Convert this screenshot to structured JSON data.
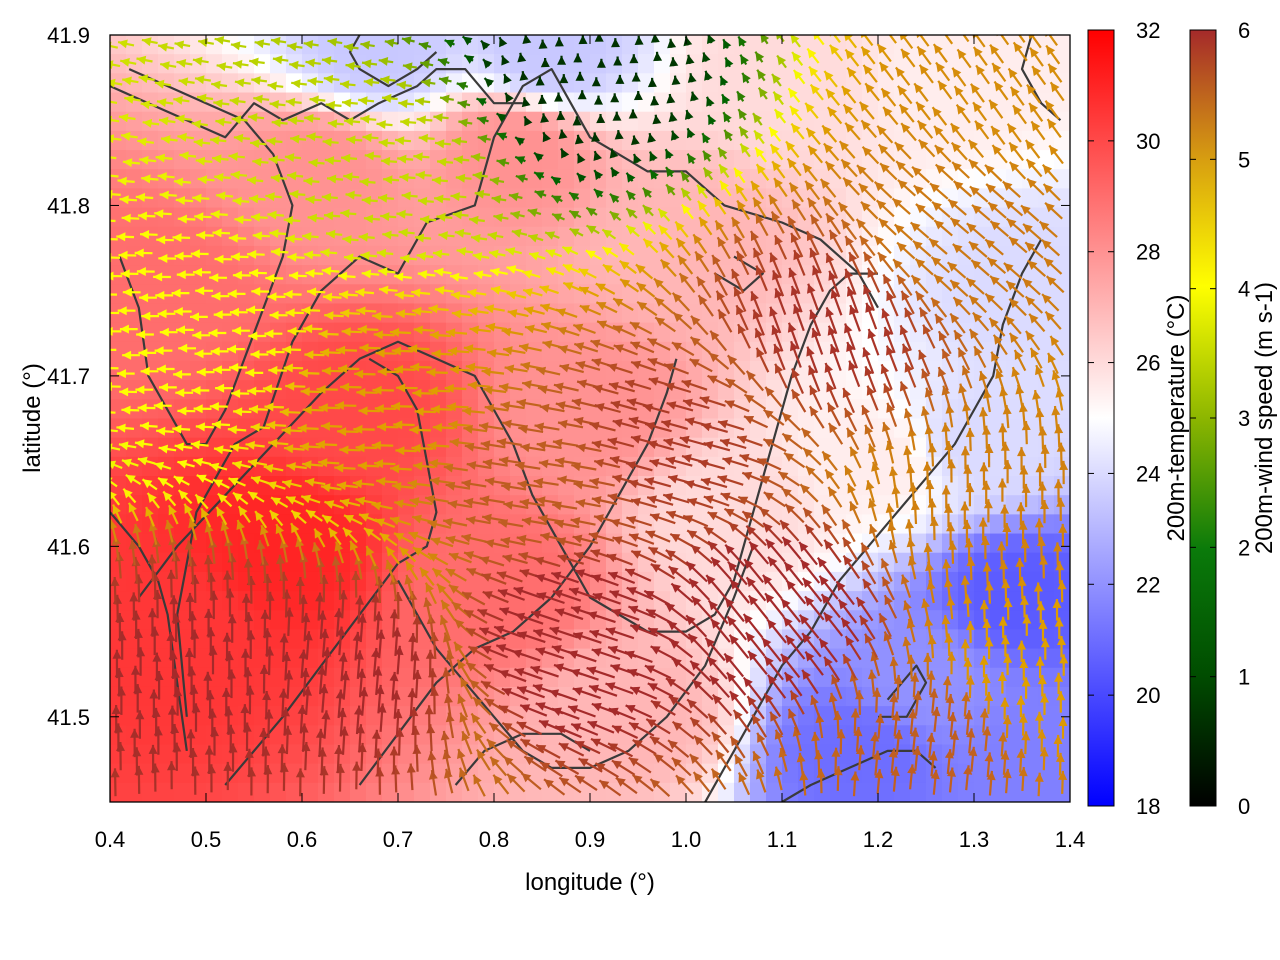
{
  "chart_data": {
    "type": "heatmap",
    "title": "",
    "xlabel": "longitude (°)",
    "ylabel": "latitude (°)",
    "xlim": [
      0.4,
      1.4
    ],
    "ylim": [
      41.45,
      41.9
    ],
    "xticks": [
      "0.4",
      "0.5",
      "0.6",
      "0.7",
      "0.8",
      "0.9",
      "1.0",
      "1.1",
      "1.2",
      "1.3",
      "1.4"
    ],
    "yticks": [
      "41.5",
      "41.6",
      "41.7",
      "41.8",
      "41.9"
    ],
    "grid": false,
    "series": [
      {
        "name": "200m-temperature",
        "kind": "color-field",
        "label": "200m-temperature (°C)",
        "colormap": [
          "#0000ff",
          "#ffffff",
          "#ff0000"
        ],
        "range": [
          18,
          32
        ],
        "colorbar_ticks": [
          "18",
          "20",
          "22",
          "24",
          "26",
          "28",
          "30",
          "32"
        ],
        "field_centers": [
          {
            "lon": 0.47,
            "lat": 41.55,
            "t": 30.5
          },
          {
            "lon": 0.58,
            "lat": 41.6,
            "t": 31.0
          },
          {
            "lon": 0.66,
            "lat": 41.68,
            "t": 30.0
          },
          {
            "lon": 0.45,
            "lat": 41.75,
            "t": 29.0
          },
          {
            "lon": 0.8,
            "lat": 41.58,
            "t": 29.0
          },
          {
            "lon": 0.9,
            "lat": 41.68,
            "t": 28.0
          },
          {
            "lon": 0.82,
            "lat": 41.83,
            "t": 28.0
          },
          {
            "lon": 0.62,
            "lat": 41.82,
            "t": 28.0
          },
          {
            "lon": 1.0,
            "lat": 41.78,
            "t": 27.0
          },
          {
            "lon": 1.05,
            "lat": 41.62,
            "t": 26.0
          },
          {
            "lon": 0.95,
            "lat": 41.5,
            "t": 27.0
          },
          {
            "lon": 1.2,
            "lat": 41.65,
            "t": 25.5
          },
          {
            "lon": 1.28,
            "lat": 41.88,
            "t": 25.5
          },
          {
            "lon": 1.1,
            "lat": 41.88,
            "t": 26.0
          },
          {
            "lon": 0.68,
            "lat": 41.89,
            "t": 23.5
          },
          {
            "lon": 0.86,
            "lat": 41.89,
            "t": 23.5
          },
          {
            "lon": 1.3,
            "lat": 41.66,
            "t": 24.0
          },
          {
            "lon": 1.36,
            "lat": 41.75,
            "t": 24.0
          },
          {
            "lon": 1.25,
            "lat": 41.52,
            "t": 22.0
          },
          {
            "lon": 1.35,
            "lat": 41.57,
            "t": 20.5
          },
          {
            "lon": 1.18,
            "lat": 41.48,
            "t": 21.0
          },
          {
            "lon": 1.38,
            "lat": 41.48,
            "t": 21.5
          }
        ]
      },
      {
        "name": "200m-wind speed",
        "kind": "vector-field",
        "label": "200m-wind speed (m s-1)",
        "colormap": [
          "#000000",
          "#006400",
          "#8db600",
          "#ffff00",
          "#e0a000",
          "#c06020",
          "#a52a2a"
        ],
        "range": [
          0,
          6
        ],
        "colorbar_ticks": [
          "0",
          "1",
          "2",
          "3",
          "4",
          "5",
          "6"
        ],
        "flow_regions": [
          {
            "lon": 0.7,
            "lat": 41.82,
            "u": -2.5,
            "v": 0.2
          },
          {
            "lon": 0.5,
            "lat": 41.72,
            "u": -3.0,
            "v": 0.0
          },
          {
            "lon": 0.7,
            "lat": 41.68,
            "u": -4.0,
            "v": 0.1
          },
          {
            "lon": 0.9,
            "lat": 41.87,
            "u": 0.0,
            "v": 0.5
          },
          {
            "lon": 0.85,
            "lat": 41.64,
            "u": -5.0,
            "v": 0.8
          },
          {
            "lon": 1.0,
            "lat": 41.66,
            "u": -5.5,
            "v": 1.5
          },
          {
            "lon": 0.5,
            "lat": 41.52,
            "u": 0.0,
            "v": 6.0
          },
          {
            "lon": 0.65,
            "lat": 41.52,
            "u": 0.5,
            "v": 6.0
          },
          {
            "lon": 0.9,
            "lat": 41.54,
            "u": -6.0,
            "v": 2.0
          },
          {
            "lon": 1.1,
            "lat": 41.55,
            "u": -4.0,
            "v": 5.0
          },
          {
            "lon": 1.15,
            "lat": 41.72,
            "u": -2.0,
            "v": 5.5
          },
          {
            "lon": 1.3,
            "lat": 41.78,
            "u": -3.5,
            "v": 3.0
          },
          {
            "lon": 1.32,
            "lat": 41.62,
            "u": 0.0,
            "v": 4.5
          },
          {
            "lon": 1.25,
            "lat": 41.48,
            "u": 0.5,
            "v": 5.0
          },
          {
            "lon": 1.36,
            "lat": 41.52,
            "u": 0.0,
            "v": 4.0
          },
          {
            "lon": 1.36,
            "lat": 41.86,
            "u": -2.5,
            "v": 3.5
          }
        ]
      },
      {
        "name": "contours",
        "kind": "line",
        "color": "#3a3a3a",
        "lines": [
          [
            [
              0.48,
              41.5
            ],
            [
              0.47,
              41.56
            ],
            [
              0.49,
              41.62
            ],
            [
              0.53,
              41.66
            ],
            [
              0.56,
              41.67
            ],
            [
              0.59,
              41.72
            ],
            [
              0.62,
              41.75
            ],
            [
              0.66,
              41.77
            ],
            [
              0.7,
              41.76
            ],
            [
              0.73,
              41.79
            ],
            [
              0.78,
              41.8
            ],
            [
              0.8,
              41.84
            ],
            [
              0.83,
              41.87
            ],
            [
              0.86,
              41.88
            ],
            [
              0.88,
              41.86
            ],
            [
              0.9,
              41.84
            ],
            [
              0.93,
              41.83
            ],
            [
              0.96,
              41.82
            ],
            [
              1.0,
              41.82
            ],
            [
              1.04,
              41.8
            ],
            [
              1.1,
              41.79
            ],
            [
              1.14,
              41.78
            ],
            [
              1.18,
              41.76
            ],
            [
              1.2,
              41.74
            ]
          ],
          [
            [
              0.4,
              41.87
            ],
            [
              0.44,
              41.86
            ],
            [
              0.48,
              41.85
            ],
            [
              0.52,
              41.84
            ],
            [
              0.55,
              41.86
            ],
            [
              0.58,
              41.85
            ],
            [
              0.62,
              41.86
            ],
            [
              0.65,
              41.85
            ],
            [
              0.68,
              41.86
            ],
            [
              0.72,
              41.87
            ],
            [
              0.74,
              41.88
            ],
            [
              0.77,
              41.88
            ],
            [
              0.8,
              41.86
            ],
            [
              0.83,
              41.86
            ]
          ],
          [
            [
              0.66,
              41.9
            ],
            [
              0.65,
              41.89
            ],
            [
              0.66,
              41.88
            ],
            [
              0.69,
              41.87
            ],
            [
              0.72,
              41.88
            ],
            [
              0.74,
              41.89
            ]
          ],
          [
            [
              0.41,
              41.77
            ],
            [
              0.43,
              41.74
            ],
            [
              0.44,
              41.7
            ],
            [
              0.46,
              41.68
            ],
            [
              0.48,
              41.66
            ],
            [
              0.5,
              41.66
            ],
            [
              0.52,
              41.68
            ],
            [
              0.54,
              41.71
            ],
            [
              0.56,
              41.74
            ],
            [
              0.58,
              41.77
            ],
            [
              0.59,
              41.8
            ],
            [
              0.57,
              41.83
            ],
            [
              0.54,
              41.85
            ],
            [
              0.5,
              41.86
            ],
            [
              0.46,
              41.87
            ],
            [
              0.42,
              41.88
            ]
          ],
          [
            [
              0.4,
              41.62
            ],
            [
              0.43,
              41.6
            ],
            [
              0.45,
              41.58
            ],
            [
              0.46,
              41.56
            ],
            [
              0.47,
              41.52
            ],
            [
              0.48,
              41.48
            ]
          ],
          [
            [
              0.43,
              41.57
            ],
            [
              0.47,
              41.6
            ],
            [
              0.52,
              41.63
            ],
            [
              0.57,
              41.66
            ],
            [
              0.62,
              41.69
            ],
            [
              0.66,
              41.71
            ],
            [
              0.7,
              41.72
            ],
            [
              0.74,
              41.71
            ],
            [
              0.78,
              41.7
            ],
            [
              0.8,
              41.68
            ],
            [
              0.82,
              41.66
            ],
            [
              0.84,
              41.63
            ],
            [
              0.86,
              41.61
            ],
            [
              0.88,
              41.59
            ],
            [
              0.9,
              41.57
            ],
            [
              0.93,
              41.56
            ],
            [
              0.96,
              41.55
            ],
            [
              1.0,
              41.55
            ],
            [
              1.03,
              41.56
            ],
            [
              1.05,
              41.58
            ],
            [
              1.07,
              41.62
            ],
            [
              1.09,
              41.66
            ],
            [
              1.11,
              41.7
            ],
            [
              1.13,
              41.73
            ],
            [
              1.15,
              41.75
            ],
            [
              1.17,
              41.76
            ],
            [
              1.2,
              41.76
            ]
          ],
          [
            [
              0.7,
              41.58
            ],
            [
              0.72,
              41.56
            ],
            [
              0.74,
              41.54
            ],
            [
              0.77,
              41.52
            ],
            [
              0.8,
              41.5
            ],
            [
              0.83,
              41.48
            ],
            [
              0.86,
              41.47
            ],
            [
              0.9,
              41.47
            ],
            [
              0.94,
              41.48
            ],
            [
              0.98,
              41.5
            ],
            [
              1.02,
              41.53
            ],
            [
              1.05,
              41.57
            ],
            [
              1.07,
              41.6
            ]
          ],
          [
            [
              0.52,
              41.46
            ],
            [
              0.55,
              41.48
            ],
            [
              0.58,
              41.5
            ],
            [
              0.62,
              41.53
            ],
            [
              0.66,
              41.56
            ],
            [
              0.7,
              41.59
            ],
            [
              0.73,
              41.6
            ],
            [
              0.74,
              41.62
            ],
            [
              0.73,
              41.65
            ],
            [
              0.72,
              41.68
            ],
            [
              0.7,
              41.7
            ],
            [
              0.67,
              41.71
            ]
          ],
          [
            [
              0.66,
              41.46
            ],
            [
              0.7,
              41.49
            ],
            [
              0.74,
              41.52
            ],
            [
              0.78,
              41.54
            ],
            [
              0.82,
              41.55
            ],
            [
              0.86,
              41.57
            ],
            [
              0.9,
              41.6
            ],
            [
              0.93,
              41.63
            ],
            [
              0.96,
              41.66
            ],
            [
              0.98,
              41.69
            ],
            [
              0.99,
              41.71
            ]
          ],
          [
            [
              1.02,
              41.45
            ],
            [
              1.05,
              41.48
            ],
            [
              1.08,
              41.51
            ],
            [
              1.1,
              41.53
            ],
            [
              1.13,
              41.55
            ],
            [
              1.16,
              41.58
            ],
            [
              1.19,
              41.6
            ],
            [
              1.22,
              41.62
            ],
            [
              1.25,
              41.64
            ],
            [
              1.28,
              41.66
            ],
            [
              1.3,
              41.68
            ],
            [
              1.32,
              41.7
            ],
            [
              1.33,
              41.73
            ],
            [
              1.35,
              41.76
            ],
            [
              1.37,
              41.78
            ]
          ],
          [
            [
              1.1,
              41.45
            ],
            [
              1.13,
              41.46
            ],
            [
              1.17,
              41.47
            ],
            [
              1.21,
              41.48
            ],
            [
              1.24,
              41.48
            ],
            [
              1.26,
              41.47
            ]
          ],
          [
            [
              1.2,
              41.5
            ],
            [
              1.23,
              41.5
            ],
            [
              1.25,
              41.52
            ],
            [
              1.24,
              41.53
            ],
            [
              1.21,
              41.51
            ]
          ],
          [
            [
              0.76,
              41.46
            ],
            [
              0.79,
              41.48
            ],
            [
              0.83,
              41.49
            ],
            [
              0.87,
              41.49
            ],
            [
              0.9,
              41.48
            ]
          ],
          [
            [
              1.36,
              41.9
            ],
            [
              1.35,
              41.88
            ],
            [
              1.37,
              41.86
            ],
            [
              1.39,
              41.85
            ]
          ],
          [
            [
              1.03,
              41.76
            ],
            [
              1.06,
              41.75
            ],
            [
              1.08,
              41.76
            ],
            [
              1.05,
              41.77
            ]
          ]
        ]
      }
    ]
  }
}
